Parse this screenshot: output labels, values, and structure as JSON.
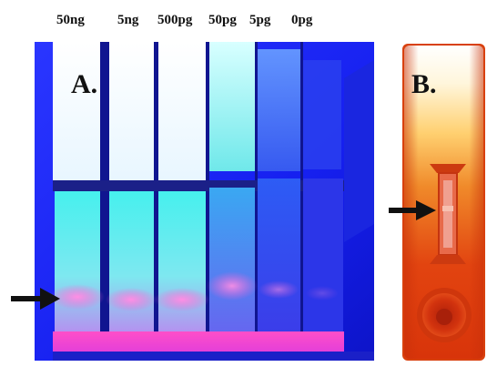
{
  "concentration_labels": [
    "50ng",
    "5ng",
    "500pg",
    "50pg",
    "5pg",
    "0pg"
  ],
  "panels": {
    "a": {
      "label": "A."
    },
    "b": {
      "label": "B."
    }
  },
  "colors": {
    "uv_background": "#1a23ff",
    "strip_white": "#ffffff",
    "strip_cyan": "#3fe6e6",
    "test_line_pink": "#ff5fd2",
    "cassette_orange": "#e4400f",
    "cassette_glow": "#ffe9b8",
    "arrow": "#111111"
  },
  "icons": {
    "arrow": "arrow-right-icon"
  }
}
